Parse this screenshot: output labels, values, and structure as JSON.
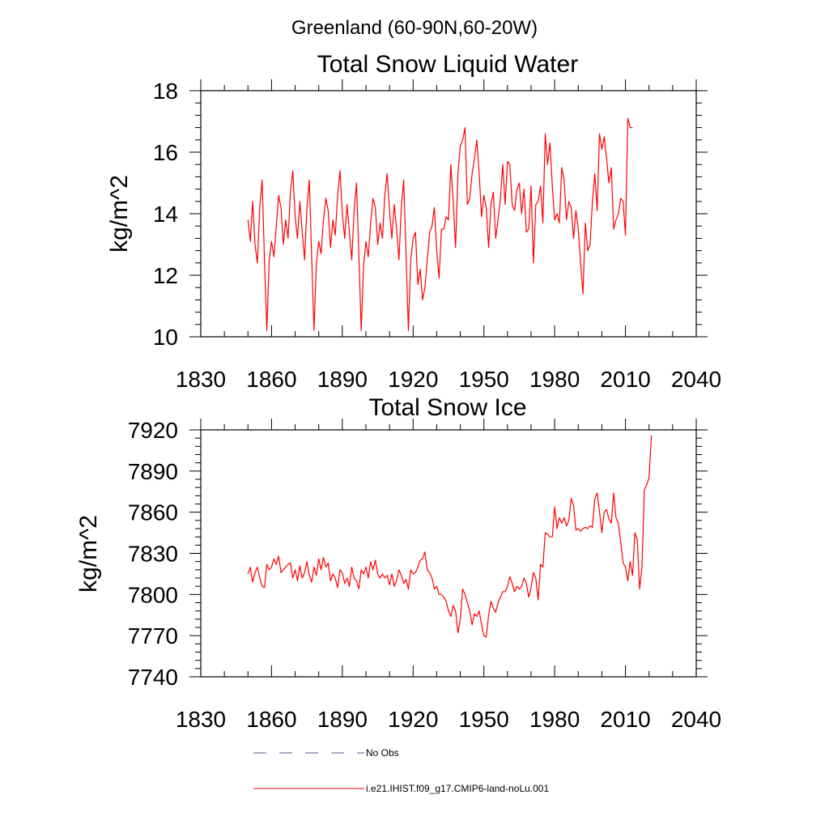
{
  "figure": {
    "suptitle": "Greenland (60-90N,60-20W)"
  },
  "colors": {
    "model": "#ff0000",
    "obs": "#4b5a8c",
    "axis": "#000000"
  },
  "chart_data": [
    {
      "type": "line",
      "title": "Total Snow Liquid Water",
      "xlabel": "",
      "ylabel": "kg/m^2",
      "xlim": [
        1830,
        2040
      ],
      "ylim": [
        10,
        18
      ],
      "xticks": [
        1830,
        1860,
        1890,
        1920,
        1950,
        1980,
        2010,
        2040
      ],
      "yticks": [
        10,
        12,
        14,
        16,
        18
      ],
      "grid": false,
      "series": [
        {
          "name": "i.e21.IHIST.f09_g17.CMIP6-land-noLu.001",
          "x_start": 1850,
          "values": [
            13.8,
            13.1,
            14.4,
            13.0,
            12.4,
            14.2,
            15.1,
            12.5,
            10.2,
            12.5,
            13.1,
            12.6,
            13.6,
            14.6,
            14.2,
            13.0,
            13.8,
            13.2,
            14.7,
            15.4,
            13.9,
            13.2,
            14.4,
            13.4,
            12.5,
            14.2,
            15.1,
            12.6,
            10.2,
            12.4,
            13.1,
            12.7,
            13.8,
            14.5,
            14.1,
            12.9,
            13.8,
            13.3,
            14.6,
            15.4,
            14.0,
            13.2,
            14.3,
            13.4,
            12.5,
            14.1,
            15.0,
            12.7,
            10.2,
            12.3,
            13.1,
            12.6,
            13.7,
            14.5,
            14.2,
            13.0,
            13.7,
            13.2,
            14.6,
            15.3,
            14.1,
            13.2,
            14.3,
            13.5,
            12.5,
            14.2,
            15.1,
            12.7,
            10.2,
            12.5,
            13.2,
            13.4,
            11.7,
            12.2,
            11.2,
            11.6,
            12.5,
            13.4,
            13.6,
            14.2,
            12.8,
            11.9,
            13.5,
            13.5,
            13.9,
            13.8,
            15.6,
            14.4,
            12.9,
            15.3,
            16.2,
            16.4,
            16.8,
            14.3,
            14.5,
            15.3,
            15.8,
            16.4,
            15.3,
            13.9,
            14.6,
            14.2,
            12.9,
            14.3,
            14.7,
            13.2,
            13.8,
            14.5,
            15.6,
            14.3,
            15.7,
            15.6,
            14.3,
            14.1,
            14.8,
            15.0,
            14.0,
            14.8,
            13.4,
            13.5,
            14.9,
            12.4,
            14.3,
            14.4,
            14.9,
            13.7,
            16.6,
            15.6,
            16.3,
            14.9,
            13.8,
            14.0,
            13.7,
            15.5,
            15.1,
            13.8,
            14.4,
            14.2,
            13.2,
            14.1,
            13.5,
            12.4,
            11.4,
            13.7,
            12.8,
            13.0,
            14.4,
            15.3,
            14.1,
            16.6,
            16.1,
            16.5,
            15.8,
            15.0,
            15.5,
            13.5,
            13.8,
            14.0,
            14.5,
            14.4,
            13.3,
            17.1,
            16.8,
            16.8
          ]
        }
      ]
    },
    {
      "type": "line",
      "title": "Total Snow Ice",
      "xlabel": "",
      "ylabel": "kg/m^2",
      "xlim": [
        1830,
        2040
      ],
      "ylim": [
        7740,
        7920
      ],
      "xticks": [
        1830,
        1860,
        1890,
        1920,
        1950,
        1980,
        2010,
        2040
      ],
      "yticks": [
        7740,
        7770,
        7800,
        7830,
        7860,
        7890,
        7920
      ],
      "grid": false,
      "series": [
        {
          "name": "i.e21.IHIST.f09_g17.CMIP6-land-noLu.001",
          "x_start": 1850,
          "values": [
            7815,
            7820,
            7809,
            7816,
            7820,
            7812,
            7806,
            7805,
            7822,
            7818,
            7820,
            7826,
            7822,
            7828,
            7816,
            7818,
            7820,
            7822,
            7823,
            7812,
            7818,
            7810,
            7821,
            7812,
            7816,
            7824,
            7814,
            7809,
            7820,
            7814,
            7826,
            7818,
            7827,
            7820,
            7823,
            7810,
            7815,
            7812,
            7805,
            7818,
            7816,
            7808,
            7812,
            7806,
            7820,
            7812,
            7810,
            7804,
            7818,
            7815,
            7820,
            7812,
            7824,
            7818,
            7825,
            7815,
            7812,
            7815,
            7812,
            7814,
            7807,
            7815,
            7806,
            7810,
            7818,
            7814,
            7808,
            7811,
            7804,
            7818,
            7815,
            7816,
            7820,
            7825,
            7826,
            7831,
            7818,
            7816,
            7812,
            7804,
            7806,
            7800,
            7800,
            7798,
            7795,
            7788,
            7784,
            7792,
            7788,
            7772,
            7782,
            7804,
            7800,
            7794,
            7788,
            7778,
            7786,
            7784,
            7788,
            7778,
            7770,
            7769,
            7785,
            7795,
            7790,
            7787,
            7794,
            7798,
            7802,
            7802,
            7806,
            7813,
            7808,
            7802,
            7806,
            7804,
            7806,
            7812,
            7808,
            7798,
            7805,
            7816,
            7812,
            7796,
            7822,
            7820,
            7845,
            7844,
            7842,
            7842,
            7864,
            7848,
            7856,
            7852,
            7856,
            7850,
            7854,
            7870,
            7865,
            7847,
            7848,
            7846,
            7848,
            7849,
            7848,
            7850,
            7849,
            7870,
            7874,
            7860,
            7845,
            7860,
            7862,
            7855,
            7852,
            7874,
            7856,
            7852,
            7838,
            7823,
            7820,
            7810,
            7824,
            7814,
            7845,
            7840,
            7804,
            7820,
            7876,
            7880,
            7885,
            7916
          ]
        }
      ]
    }
  ],
  "legend": {
    "position": "bottom",
    "items": [
      {
        "label": "No Obs",
        "style": "dashed",
        "color": "#4b5a8c"
      },
      {
        "label": "i.e21.IHIST.f09_g17.CMIP6-land-noLu.001",
        "style": "solid",
        "color": "#ff0000"
      }
    ]
  }
}
